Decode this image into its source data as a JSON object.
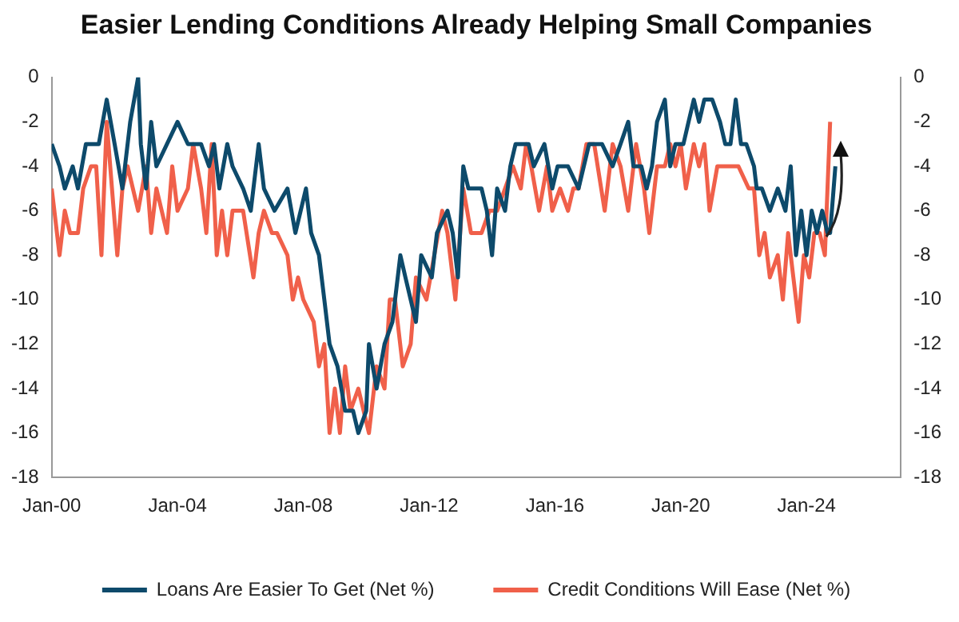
{
  "chart_data": {
    "type": "line",
    "title": "Easier Lending Conditions Already Helping Small Companies",
    "xlim": [
      "2000-01",
      "2027-01"
    ],
    "xticks": [
      {
        "value": "2000-01",
        "label": "Jan-00"
      },
      {
        "value": "2004-01",
        "label": "Jan-04"
      },
      {
        "value": "2008-01",
        "label": "Jan-08"
      },
      {
        "value": "2012-01",
        "label": "Jan-12"
      },
      {
        "value": "2016-01",
        "label": "Jan-16"
      },
      {
        "value": "2020-01",
        "label": "Jan-20"
      },
      {
        "value": "2024-01",
        "label": "Jan-24"
      }
    ],
    "ylim": [
      -18,
      0
    ],
    "yticks": [
      -18,
      -16,
      -14,
      -12,
      -10,
      -8,
      -6,
      -4,
      -2,
      0
    ],
    "y2lim": [
      -18,
      0
    ],
    "y2ticks": [
      -18,
      -16,
      -14,
      -12,
      -10,
      -8,
      -6,
      -4,
      -2,
      0
    ],
    "grid": false,
    "legend": "bottom",
    "marker": "none",
    "line_style": "solid",
    "series": [
      {
        "name": "Loans Are Easier To Get (Net %)",
        "color": "#0d4a6b",
        "x": [
          "2000-01",
          "2000-04",
          "2000-06",
          "2000-09",
          "2000-11",
          "2001-02",
          "2001-07",
          "2001-10",
          "2002-01",
          "2002-04",
          "2002-07",
          "2002-10",
          "2002-11",
          "2003-01",
          "2003-03",
          "2003-05",
          "2003-09",
          "2004-01",
          "2004-05",
          "2004-10",
          "2005-01",
          "2005-03",
          "2005-05",
          "2005-08",
          "2005-10",
          "2006-02",
          "2006-05",
          "2006-08",
          "2006-10",
          "2007-02",
          "2007-07",
          "2007-10",
          "2008-02",
          "2008-04",
          "2008-07",
          "2008-09",
          "2008-11",
          "2009-02",
          "2009-05",
          "2009-08",
          "2009-10",
          "2010-01",
          "2010-02",
          "2010-05",
          "2010-08",
          "2010-11",
          "2011-02",
          "2011-04",
          "2011-06",
          "2011-08",
          "2011-10",
          "2012-02",
          "2012-04",
          "2012-08",
          "2012-10",
          "2012-12",
          "2013-02",
          "2013-04",
          "2013-09",
          "2013-11",
          "2014-01",
          "2014-03",
          "2014-06",
          "2014-08",
          "2014-10",
          "2014-12",
          "2015-03",
          "2015-05",
          "2015-09",
          "2015-12",
          "2016-02",
          "2016-06",
          "2016-10",
          "2017-02",
          "2017-07",
          "2017-11",
          "2018-02",
          "2018-05",
          "2018-07",
          "2018-10",
          "2018-12",
          "2019-02",
          "2019-04",
          "2019-07",
          "2019-09",
          "2019-11",
          "2020-02",
          "2020-04",
          "2020-06",
          "2020-08",
          "2020-10",
          "2021-01",
          "2021-04",
          "2021-06",
          "2021-08",
          "2021-10",
          "2021-12",
          "2022-02",
          "2022-05",
          "2022-06",
          "2022-08",
          "2022-11",
          "2023-02",
          "2023-05",
          "2023-07",
          "2023-09",
          "2023-11",
          "2024-01",
          "2024-03",
          "2024-05",
          "2024-07",
          "2024-09",
          "2024-10",
          "2024-12"
        ],
        "values": [
          -3,
          -4,
          -5,
          -4,
          -5,
          -3,
          -3,
          -1,
          -3,
          -5,
          -2,
          0,
          -3,
          -5,
          -2,
          -4,
          -3,
          -2,
          -3,
          -3,
          -4,
          -3,
          -5,
          -3,
          -4,
          -5,
          -6,
          -3,
          -5,
          -6,
          -5,
          -7,
          -5,
          -7,
          -8,
          -10,
          -12,
          -13,
          -15,
          -15,
          -16,
          -15,
          -12,
          -14,
          -12,
          -11,
          -8,
          -9,
          -10,
          -11,
          -8,
          -9,
          -7,
          -6,
          -7,
          -9,
          -4,
          -5,
          -5,
          -6,
          -8,
          -5,
          -6,
          -4,
          -3,
          -3,
          -3,
          -4,
          -3,
          -5,
          -4,
          -4,
          -5,
          -3,
          -3,
          -4,
          -3,
          -2,
          -4,
          -4,
          -5,
          -4,
          -2,
          -1,
          -4,
          -3,
          -3,
          -2,
          -1,
          -2,
          -1,
          -1,
          -2,
          -3,
          -3,
          -1,
          -3,
          -3,
          -4,
          -5,
          -5,
          -6,
          -5,
          -6,
          -4,
          -8,
          -6,
          -8,
          -6,
          -7,
          -6,
          -7,
          -7,
          -4
        ]
      },
      {
        "name": "Credit Conditions Will Ease (Net %)",
        "color": "#f0604a",
        "x": [
          "2000-01",
          "2000-02",
          "2000-04",
          "2000-06",
          "2000-08",
          "2000-11",
          "2001-01",
          "2001-04",
          "2001-06",
          "2001-08",
          "2001-10",
          "2001-12",
          "2002-02",
          "2002-04",
          "2002-06",
          "2002-08",
          "2002-10",
          "2003-01",
          "2003-03",
          "2003-05",
          "2003-09",
          "2003-11",
          "2004-01",
          "2004-05",
          "2004-07",
          "2004-10",
          "2004-12",
          "2005-02",
          "2005-04",
          "2005-06",
          "2005-08",
          "2005-10",
          "2006-02",
          "2006-06",
          "2006-08",
          "2006-10",
          "2007-01",
          "2007-03",
          "2007-07",
          "2007-09",
          "2007-11",
          "2008-01",
          "2008-05",
          "2008-07",
          "2008-09",
          "2008-11",
          "2009-01",
          "2009-03",
          "2009-05",
          "2009-07",
          "2009-10",
          "2010-02",
          "2010-05",
          "2010-08",
          "2010-10",
          "2010-12",
          "2011-03",
          "2011-06",
          "2011-08",
          "2011-12",
          "2012-03",
          "2012-06",
          "2012-08",
          "2012-11",
          "2013-02",
          "2013-05",
          "2013-09",
          "2013-12",
          "2014-03",
          "2014-06",
          "2014-09",
          "2014-12",
          "2015-02",
          "2015-04",
          "2015-07",
          "2015-10",
          "2015-12",
          "2016-03",
          "2016-06",
          "2016-08",
          "2016-10",
          "2017-01",
          "2017-04",
          "2017-08",
          "2017-11",
          "2018-02",
          "2018-05",
          "2018-08",
          "2018-11",
          "2019-01",
          "2019-04",
          "2019-07",
          "2019-09",
          "2019-11",
          "2020-01",
          "2020-03",
          "2020-06",
          "2020-08",
          "2020-10",
          "2020-12",
          "2021-03",
          "2021-07",
          "2021-11",
          "2022-03",
          "2022-05",
          "2022-07",
          "2022-09",
          "2022-11",
          "2023-02",
          "2023-04",
          "2023-06",
          "2023-08",
          "2023-10",
          "2023-12",
          "2024-02",
          "2024-04",
          "2024-06",
          "2024-08",
          "2024-10"
        ],
        "values": [
          -5,
          -6,
          -8,
          -6,
          -7,
          -7,
          -5,
          -4,
          -4,
          -8,
          -2,
          -5,
          -8,
          -5,
          -4,
          -5,
          -6,
          -4,
          -7,
          -5,
          -7,
          -4,
          -6,
          -5,
          -3,
          -5,
          -7,
          -3,
          -8,
          -6,
          -8,
          -6,
          -6,
          -9,
          -7,
          -6,
          -7,
          -7,
          -8,
          -10,
          -9,
          -10,
          -11,
          -13,
          -12,
          -16,
          -14,
          -16,
          -13,
          -15,
          -14,
          -16,
          -13,
          -14,
          -10,
          -10,
          -13,
          -12,
          -9,
          -10,
          -8,
          -6,
          -7,
          -10,
          -5,
          -7,
          -7,
          -6,
          -6,
          -5,
          -4,
          -5,
          -3,
          -4,
          -6,
          -4,
          -6,
          -5,
          -6,
          -5,
          -5,
          -3,
          -3,
          -6,
          -3,
          -4,
          -6,
          -3,
          -5,
          -7,
          -4,
          -4,
          -3,
          -4,
          -3,
          -5,
          -3,
          -4,
          -3,
          -6,
          -4,
          -4,
          -4,
          -5,
          -5,
          -8,
          -7,
          -9,
          -8,
          -10,
          -7,
          -9,
          -11,
          -8,
          -9,
          -7,
          -7,
          -8,
          -2
        ]
      }
    ]
  }
}
